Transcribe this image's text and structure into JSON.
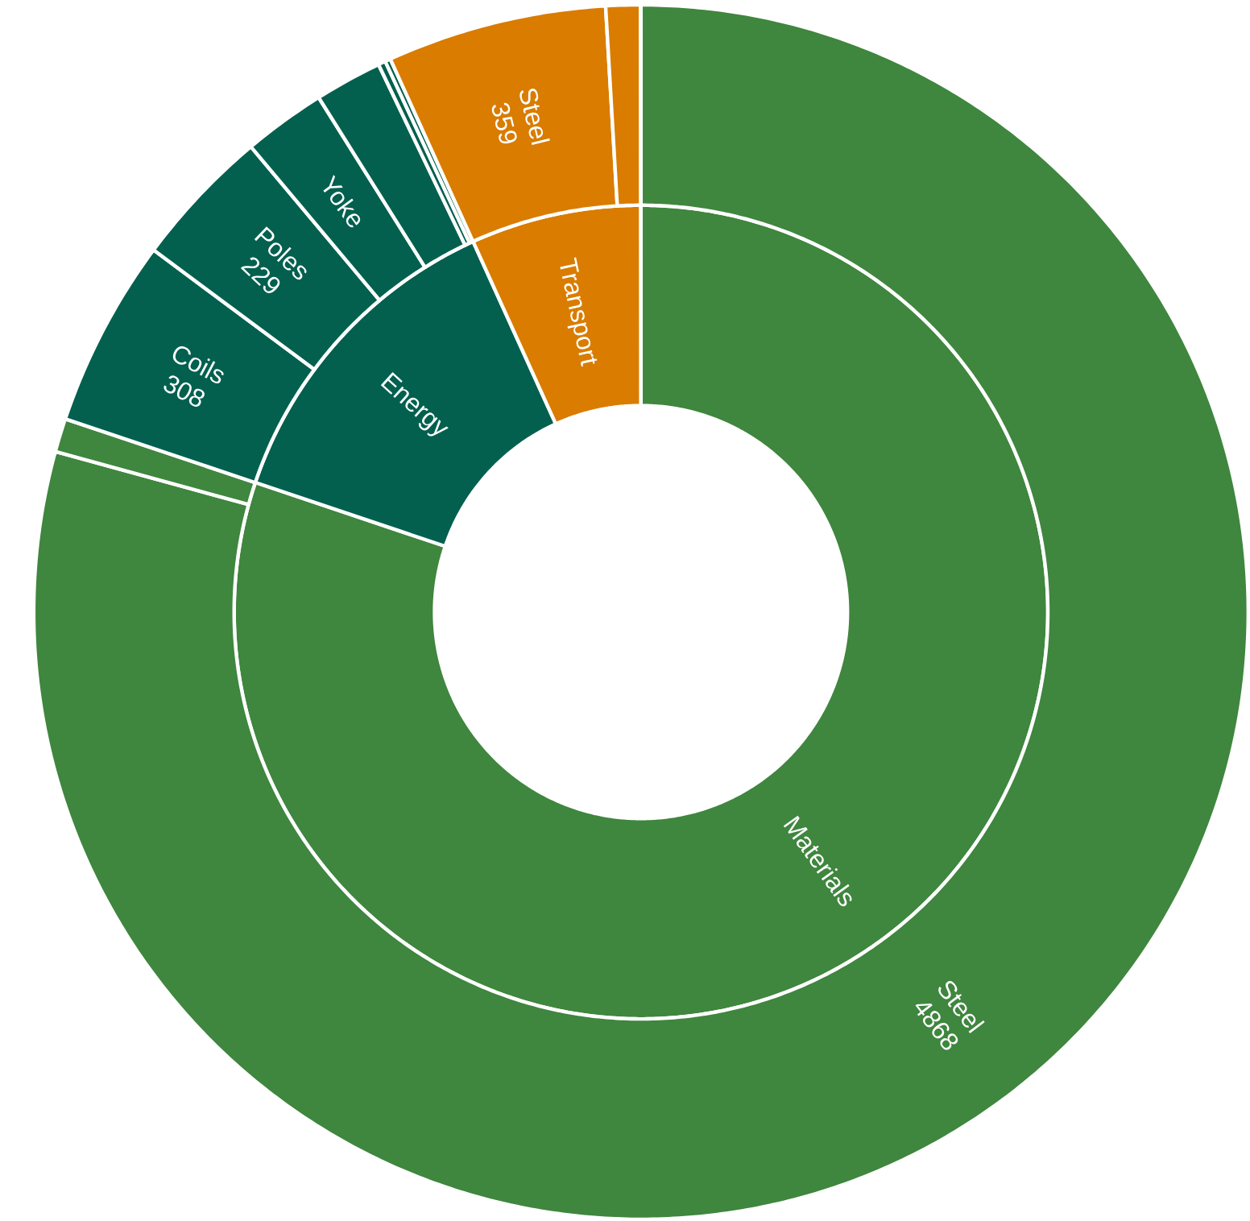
{
  "chart_data": [
    {
      "type": "donut",
      "categories": [
        "Materials",
        "Energy",
        "Transport"
      ],
      "values": [
        80.16,
        13.07,
        6.77
      ],
      "colors": [
        "#3f863e",
        "#03604f",
        "#d97c00"
      ]
    },
    {
      "type": "donut",
      "categories": [
        "Steel",
        null,
        "Coils",
        "Poles",
        "Yoke",
        null,
        null,
        null,
        "Steel",
        null
      ],
      "values": [
        4868,
        55,
        308,
        229,
        135,
        110,
        12,
        9,
        359,
        57
      ],
      "value_labels": [
        "4868",
        null,
        "308",
        "229",
        null,
        null,
        null,
        null,
        "359",
        null
      ],
      "colors": [
        "#3f863e",
        "#3f863e",
        "#03604f",
        "#03604f",
        "#03604f",
        "#03604f",
        "#03604f",
        "#03604f",
        "#d97c00",
        "#d97c00"
      ]
    }
  ]
}
